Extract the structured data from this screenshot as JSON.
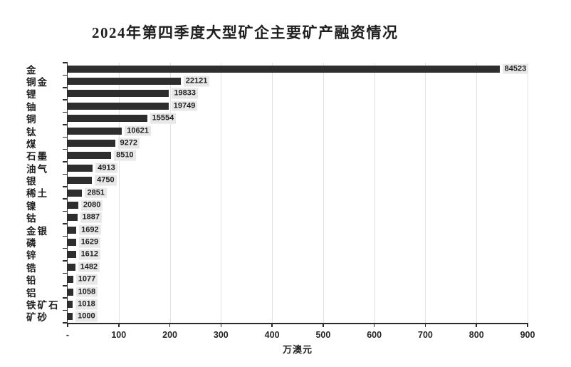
{
  "title": "2024年第四季度大型矿企主要矿产融资情况",
  "chart_data": {
    "type": "bar",
    "orientation": "horizontal",
    "title": "2024年第四季度大型矿企主要矿产融资情况",
    "xlabel": "万澳元",
    "categories": [
      "金",
      "铜金",
      "锂",
      "铀",
      "铜",
      "钛",
      "煤",
      "石墨",
      "油气",
      "银",
      "稀土",
      "镍",
      "钴",
      "金银",
      "磷",
      "锌",
      "锆",
      "铅",
      "铝",
      "铁矿石",
      "矿砂"
    ],
    "values": [
      84523,
      22121,
      19833,
      19749,
      15554,
      10621,
      9272,
      8510,
      4913,
      4750,
      2851,
      2080,
      1887,
      1692,
      1629,
      1612,
      1482,
      1077,
      1058,
      1018,
      1000
    ],
    "xlim": [
      0,
      900
    ],
    "value_axis_scale": 0.01,
    "x_ticks": {
      "values": [
        0,
        100,
        200,
        300,
        400,
        500,
        600,
        700,
        800,
        900
      ],
      "labels": [
        "-",
        "100",
        "200",
        "300",
        "400",
        "500",
        "600",
        "700",
        "800",
        "900"
      ]
    },
    "grid": true,
    "legend": false,
    "data_labels": true,
    "colors": {
      "bar": "#2e2e2e",
      "value_label_bg": "#e8e8e8",
      "gridline": "#e2e2e2",
      "axis": "#2b2b2b",
      "text": "#1f1f1f"
    }
  }
}
